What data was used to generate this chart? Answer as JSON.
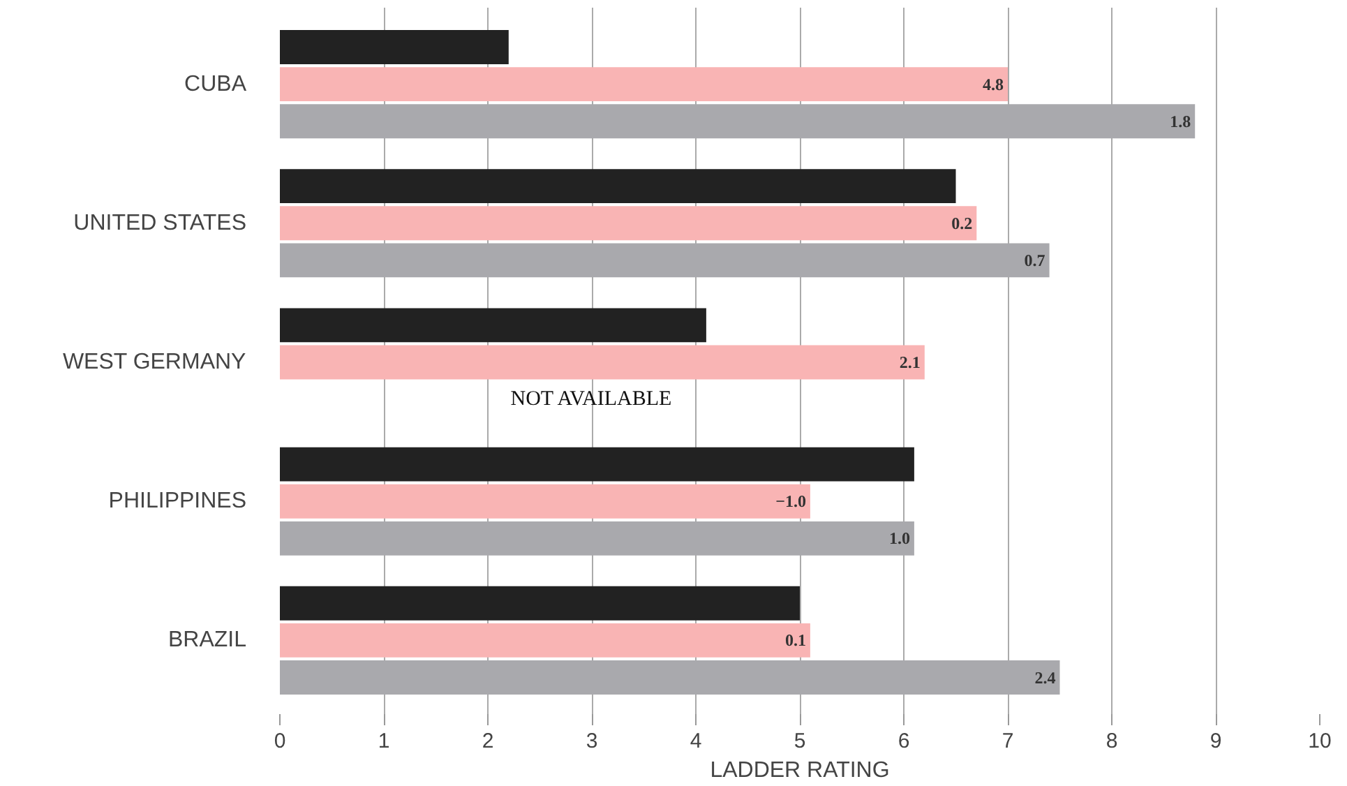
{
  "chart_data": {
    "type": "bar",
    "orientation": "horizontal",
    "categories": [
      "CUBA",
      "UNITED STATES",
      "WEST GERMANY",
      "PHILIPPINES",
      "BRAZIL"
    ],
    "series": [
      {
        "color": "#222222",
        "values": [
          2.2,
          6.5,
          4.1,
          6.1,
          5.0
        ]
      },
      {
        "color": "#f9b4b4",
        "values": [
          7.0,
          6.7,
          6.2,
          5.1,
          5.1
        ]
      },
      {
        "color": "#a9a9ad",
        "values": [
          8.8,
          7.4,
          null,
          6.1,
          7.5
        ]
      }
    ],
    "xlabel": "LADDER RATING",
    "xlim": [
      0,
      10
    ],
    "xticks": [
      0,
      1,
      2,
      3,
      4,
      5,
      6,
      7,
      8,
      9,
      10
    ],
    "grid": "x",
    "annotations": [
      "NOT AVAILABLE",
      {
        "text": "4.8",
        "x": 7.0,
        "y": "CUBA"
      },
      "1.8",
      {
        "text": "0.2",
        "x": 6.7,
        "y": "UNITED STATES"
      },
      "0.7",
      {
        "text": "2.1",
        "x": 6.2,
        "y": "WEST GERMANY"
      },
      {
        "text": "−1.0",
        "x": 5.1,
        "y": "PHILIPPINES"
      },
      "1.0",
      {
        "text": "0.1",
        "x": 5.1,
        "y": "BRAZIL"
      },
      "2.4"
    ]
  }
}
